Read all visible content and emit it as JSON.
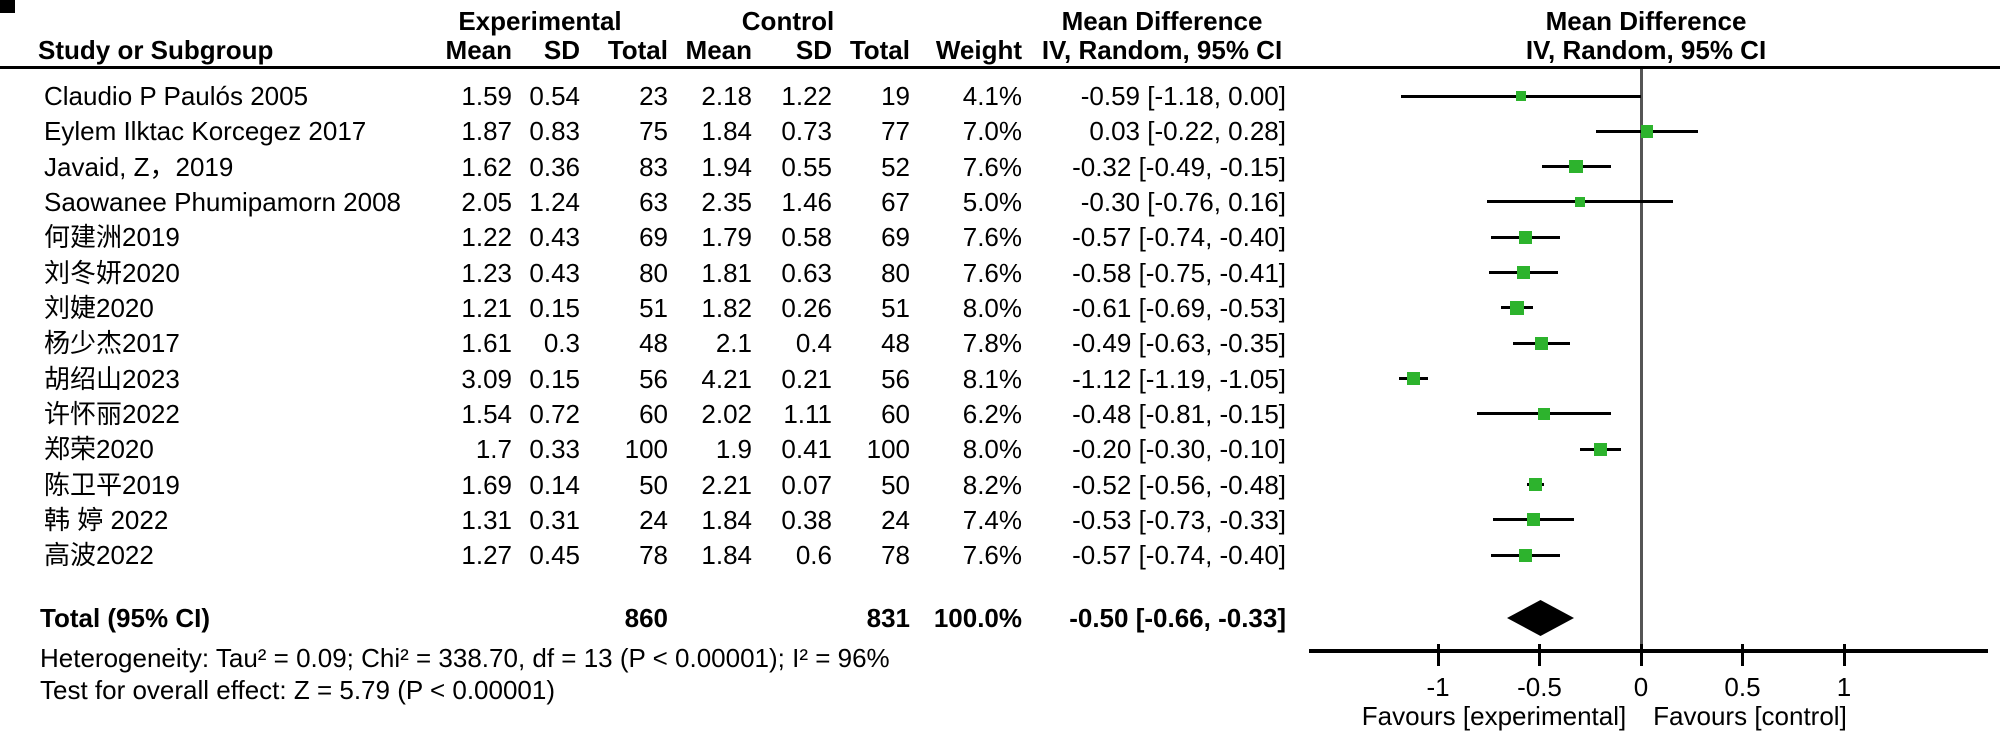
{
  "header": {
    "group1": "Experimental",
    "group2": "Control",
    "col_study": "Study or Subgroup",
    "col_mean": "Mean",
    "col_sd": "SD",
    "col_total": "Total",
    "col_weight": "Weight",
    "md_title": "Mean Difference",
    "md_subtitle": "IV, Random, 95% CI",
    "md_title_plot": "Mean Difference",
    "md_subtitle_plot": "IV, Random, 95% CI"
  },
  "studies": [
    {
      "name": "Claudio P Paulós 2005",
      "mean_e": "1.59",
      "sd_e": "0.54",
      "total_e": "23",
      "mean_c": "2.18",
      "sd_c": "1.22",
      "total_c": "19",
      "weight": "4.1%",
      "ci_text": "-0.59 [-1.18, 0.00]",
      "md": -0.59,
      "lo": -1.18,
      "hi": 0.0,
      "w": 4.1
    },
    {
      "name": "Eylem Ilktac Korcegez 2017",
      "mean_e": "1.87",
      "sd_e": "0.83",
      "total_e": "75",
      "mean_c": "1.84",
      "sd_c": "0.73",
      "total_c": "77",
      "weight": "7.0%",
      "ci_text": "0.03 [-0.22, 0.28]",
      "md": 0.03,
      "lo": -0.22,
      "hi": 0.28,
      "w": 7.0
    },
    {
      "name": "Javaid, Z，2019",
      "mean_e": "1.62",
      "sd_e": "0.36",
      "total_e": "83",
      "mean_c": "1.94",
      "sd_c": "0.55",
      "total_c": "52",
      "weight": "7.6%",
      "ci_text": "-0.32 [-0.49, -0.15]",
      "md": -0.32,
      "lo": -0.49,
      "hi": -0.15,
      "w": 7.6
    },
    {
      "name": "Saowanee Phumipamorn 2008",
      "mean_e": "2.05",
      "sd_e": "1.24",
      "total_e": "63",
      "mean_c": "2.35",
      "sd_c": "1.46",
      "total_c": "67",
      "weight": "5.0%",
      "ci_text": "-0.30 [-0.76, 0.16]",
      "md": -0.3,
      "lo": -0.76,
      "hi": 0.16,
      "w": 5.0
    },
    {
      "name": "何建洲2019",
      "mean_e": "1.22",
      "sd_e": "0.43",
      "total_e": "69",
      "mean_c": "1.79",
      "sd_c": "0.58",
      "total_c": "69",
      "weight": "7.6%",
      "ci_text": "-0.57 [-0.74, -0.40]",
      "md": -0.57,
      "lo": -0.74,
      "hi": -0.4,
      "w": 7.6
    },
    {
      "name": "刘冬妍2020",
      "mean_e": "1.23",
      "sd_e": "0.43",
      "total_e": "80",
      "mean_c": "1.81",
      "sd_c": "0.63",
      "total_c": "80",
      "weight": "7.6%",
      "ci_text": "-0.58 [-0.75, -0.41]",
      "md": -0.58,
      "lo": -0.75,
      "hi": -0.41,
      "w": 7.6
    },
    {
      "name": "刘婕2020",
      "mean_e": "1.21",
      "sd_e": "0.15",
      "total_e": "51",
      "mean_c": "1.82",
      "sd_c": "0.26",
      "total_c": "51",
      "weight": "8.0%",
      "ci_text": "-0.61 [-0.69, -0.53]",
      "md": -0.61,
      "lo": -0.69,
      "hi": -0.53,
      "w": 8.0
    },
    {
      "name": "杨少杰2017",
      "mean_e": "1.61",
      "sd_e": "0.3",
      "total_e": "48",
      "mean_c": "2.1",
      "sd_c": "0.4",
      "total_c": "48",
      "weight": "7.8%",
      "ci_text": "-0.49 [-0.63, -0.35]",
      "md": -0.49,
      "lo": -0.63,
      "hi": -0.35,
      "w": 7.8
    },
    {
      "name": "胡绍山2023",
      "mean_e": "3.09",
      "sd_e": "0.15",
      "total_e": "56",
      "mean_c": "4.21",
      "sd_c": "0.21",
      "total_c": "56",
      "weight": "8.1%",
      "ci_text": "-1.12 [-1.19, -1.05]",
      "md": -1.12,
      "lo": -1.19,
      "hi": -1.05,
      "w": 8.1
    },
    {
      "name": "许怀丽2022",
      "mean_e": "1.54",
      "sd_e": "0.72",
      "total_e": "60",
      "mean_c": "2.02",
      "sd_c": "1.11",
      "total_c": "60",
      "weight": "6.2%",
      "ci_text": "-0.48 [-0.81, -0.15]",
      "md": -0.48,
      "lo": -0.81,
      "hi": -0.15,
      "w": 6.2
    },
    {
      "name": "郑荣2020",
      "mean_e": "1.7",
      "sd_e": "0.33",
      "total_e": "100",
      "mean_c": "1.9",
      "sd_c": "0.41",
      "total_c": "100",
      "weight": "8.0%",
      "ci_text": "-0.20 [-0.30, -0.10]",
      "md": -0.2,
      "lo": -0.3,
      "hi": -0.1,
      "w": 8.0
    },
    {
      "name": "陈卫平2019",
      "mean_e": "1.69",
      "sd_e": "0.14",
      "total_e": "50",
      "mean_c": "2.21",
      "sd_c": "0.07",
      "total_c": "50",
      "weight": "8.2%",
      "ci_text": "-0.52 [-0.56, -0.48]",
      "md": -0.52,
      "lo": -0.56,
      "hi": -0.48,
      "w": 8.2
    },
    {
      "name": "韩 婷 2022",
      "mean_e": "1.31",
      "sd_e": "0.31",
      "total_e": "24",
      "mean_c": "1.84",
      "sd_c": "0.38",
      "total_c": "24",
      "weight": "7.4%",
      "ci_text": "-0.53 [-0.73, -0.33]",
      "md": -0.53,
      "lo": -0.73,
      "hi": -0.33,
      "w": 7.4
    },
    {
      "name": "高波2022",
      "mean_e": "1.27",
      "sd_e": "0.45",
      "total_e": "78",
      "mean_c": "1.84",
      "sd_c": "0.6",
      "total_c": "78",
      "weight": "7.6%",
      "ci_text": "-0.57 [-0.74, -0.40]",
      "md": -0.57,
      "lo": -0.74,
      "hi": -0.4,
      "w": 7.6
    }
  ],
  "total": {
    "label": "Total (95% CI)",
    "total_e": "860",
    "total_c": "831",
    "weight": "100.0%",
    "ci_text": "-0.50 [-0.66, -0.33]",
    "md": -0.5,
    "lo": -0.66,
    "hi": -0.33
  },
  "footnotes": {
    "heterogeneity": "Heterogeneity: Tau² = 0.09; Chi² = 338.70, df = 13 (P < 0.00001); I² = 96%",
    "overall_effect": "Test for overall effect: Z = 5.79 (P < 0.00001)"
  },
  "axis": {
    "tick_values": [
      -1,
      -0.5,
      0,
      0.5,
      1
    ],
    "tick_labels": [
      "-1",
      "-0.5",
      "0",
      "0.5",
      "1"
    ],
    "favours_left": "Favours [experimental]",
    "favours_right": "Favours [control]"
  },
  "colors": {
    "marker_green": "#2db32d",
    "line_black": "#000000",
    "zero_line_gray": "#555555"
  },
  "chart_data": {
    "type": "scatter",
    "subtype": "forest-plot",
    "title": "Mean Difference IV, Random, 95% CI",
    "categories": [
      "Claudio P Paulós 2005",
      "Eylem Ilktac Korcegez 2017",
      "Javaid, Z，2019",
      "Saowanee Phumipamorn 2008",
      "何建洲2019",
      "刘冬妍2020",
      "刘婕2020",
      "杨少杰2017",
      "胡绍山2023",
      "许怀丽2022",
      "郑荣2020",
      "陈卫平2019",
      "韩 婷 2022",
      "高波2022"
    ],
    "mean_difference": [
      -0.59,
      0.03,
      -0.32,
      -0.3,
      -0.57,
      -0.58,
      -0.61,
      -0.49,
      -1.12,
      -0.48,
      -0.2,
      -0.52,
      -0.53,
      -0.57
    ],
    "ci_low": [
      -1.18,
      -0.22,
      -0.49,
      -0.76,
      -0.74,
      -0.75,
      -0.69,
      -0.63,
      -1.19,
      -0.81,
      -0.3,
      -0.56,
      -0.73,
      -0.74
    ],
    "ci_high": [
      0.0,
      0.28,
      -0.15,
      0.16,
      -0.4,
      -0.41,
      -0.53,
      -0.35,
      -1.05,
      -0.15,
      -0.1,
      -0.48,
      -0.33,
      -0.4
    ],
    "weights_pct": [
      4.1,
      7.0,
      7.6,
      5.0,
      7.6,
      7.6,
      8.0,
      7.8,
      8.1,
      6.2,
      8.0,
      8.2,
      7.4,
      7.6
    ],
    "pooled": {
      "label": "Total (95% CI)",
      "md": -0.5,
      "ci_low": -0.66,
      "ci_high": -0.33,
      "n_experimental": 860,
      "n_control": 831
    },
    "xticks": [
      -1,
      -0.5,
      0,
      0.5,
      1
    ],
    "xlim": [
      -1.64,
      1.71
    ],
    "xlabel_left": "Favours [experimental]",
    "xlabel_right": "Favours [control]",
    "grid": false,
    "legend": false
  }
}
